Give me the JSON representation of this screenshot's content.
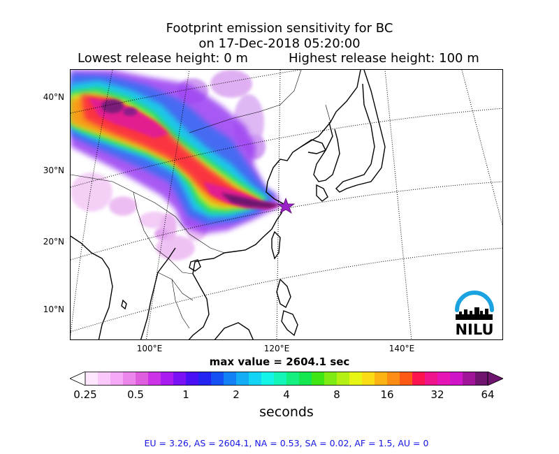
{
  "title_line1": "Footprint emission sensitivity for BC",
  "title_line2": "on 17-Dec-2018 05:20:00",
  "release_low": "Lowest release height: 0 m",
  "release_high": "Highest release height: 100 m",
  "logo_text": "NILU",
  "colors": {
    "logo": "#1aa3e0",
    "release_marker": "#9a20c8"
  },
  "chart_data": {
    "type": "heatmap",
    "title": "Footprint emission sensitivity for BC",
    "lat_labels": [
      "40°N",
      "30°N",
      "20°N",
      "10°N"
    ],
    "lon_labels": [
      "100°E",
      "120°E",
      "140°E"
    ],
    "lat_values": [
      40,
      30,
      20,
      10
    ],
    "lon_values": [
      100,
      120,
      140
    ],
    "release_point": {
      "lon": 121.5,
      "lat": 31.2
    },
    "max_label": "max value = 2604.1 sec",
    "max_value": 2604.1,
    "colorbar": {
      "scale": "log",
      "range": [
        0.25,
        64
      ],
      "tick_labels": [
        "0.25",
        "0.5",
        "1",
        "2",
        "4",
        "8",
        "16",
        "32",
        "64"
      ],
      "tick_values": [
        0.25,
        0.5,
        1,
        2,
        4,
        8,
        16,
        32,
        64
      ],
      "label": "seconds",
      "colors": [
        "#ffe6ff",
        "#fbc8fb",
        "#f5a8f5",
        "#ec86ec",
        "#de5ede",
        "#cc33e6",
        "#a81cf0",
        "#7a10f5",
        "#4a10f5",
        "#2424f2",
        "#1550f5",
        "#1480f5",
        "#14acf5",
        "#14d4f5",
        "#14f5e8",
        "#14f5b8",
        "#14f080",
        "#14e650",
        "#40e614",
        "#80eb14",
        "#b4f014",
        "#e6f514",
        "#fadc14",
        "#fcb414",
        "#fc8c14",
        "#fc5a14",
        "#fc1450",
        "#f0148c",
        "#e614b4",
        "#d014c8",
        "#a0149a",
        "#6e146e"
      ]
    },
    "stats": {
      "text": "EU = 3.26,  AS = 2604.1,  NA = 0.53,  SA = 0.02,  AF = 1.5,  AU = 0",
      "EU": 3.26,
      "AS": 2604.1,
      "NA": 0.53,
      "SA": 0.02,
      "AF": 1.5,
      "AU": 0
    }
  }
}
